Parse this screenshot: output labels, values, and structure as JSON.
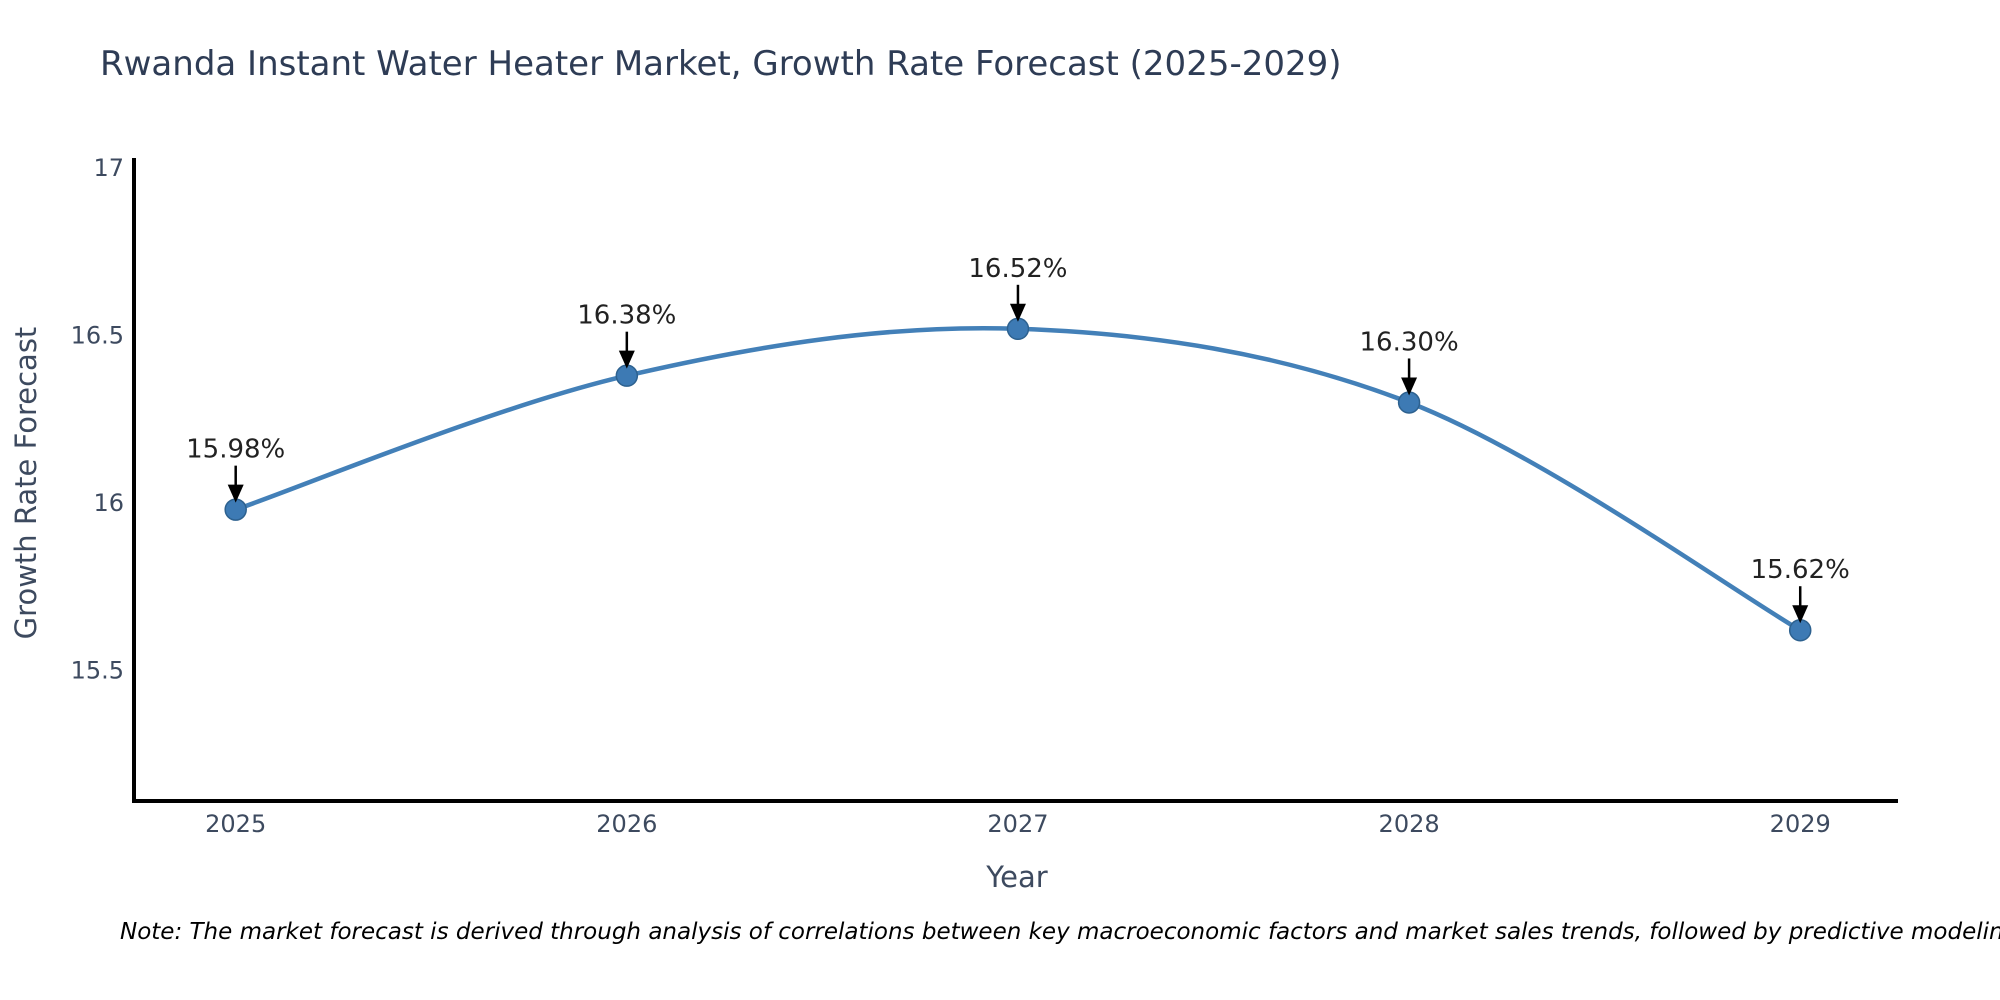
{
  "chart_data": {
    "type": "line",
    "title": "Rwanda Instant Water Heater Market, Growth Rate Forecast (2025-2029)",
    "xlabel": "Year",
    "ylabel": "Growth Rate Forecast",
    "categories": [
      "2025",
      "2026",
      "2027",
      "2028",
      "2029"
    ],
    "x": [
      2025,
      2026,
      2027,
      2028,
      2029
    ],
    "values": [
      15.98,
      16.38,
      16.52,
      16.3,
      15.62
    ],
    "point_labels": [
      "15.98%",
      "16.38%",
      "16.52%",
      "16.30%",
      "15.62%"
    ],
    "yticks": [
      17,
      16.5,
      16,
      15.5
    ],
    "ytick_labels": [
      "17",
      "16.5",
      "16",
      "15.5"
    ],
    "ylim": [
      15.11,
      17.03
    ],
    "xlim": [
      2024.74,
      2029.25
    ],
    "grid": false,
    "legend": "none",
    "line_shape": "spline",
    "line_color": "#4380b8",
    "marker_color": "#3d7ab4",
    "marker_edge_color": "#2d618f",
    "spine_color": "#000000",
    "annotation_arrow_color": "#000000"
  },
  "note": "Note: The market forecast is derived through analysis of correlations between key macroeconomic factors and market sales trends, followed by predictive modeling to project future sal"
}
